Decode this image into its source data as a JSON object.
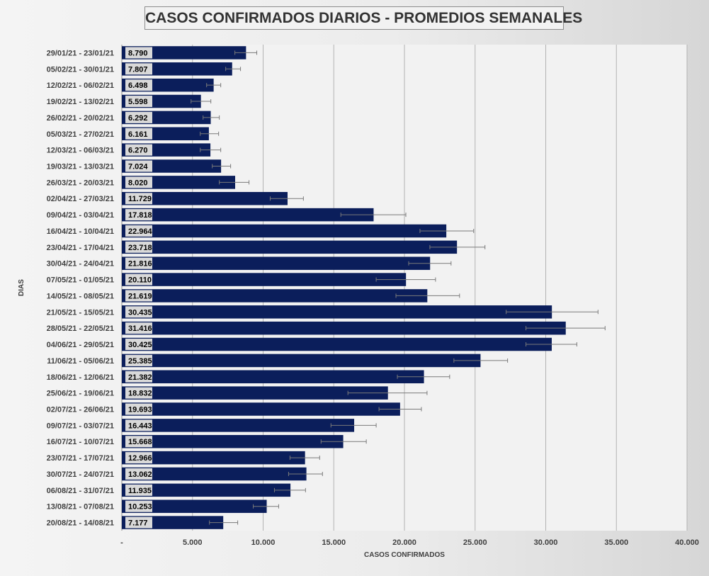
{
  "chart_data": {
    "type": "bar",
    "orientation": "horizontal",
    "title": "CASOS CONFIRMADOS DIARIOS - PROMEDIOS SEMANALES",
    "xlabel": "CASOS CONFIRMADOS",
    "ylabel": "DIAS",
    "xlim": [
      0,
      40000
    ],
    "xticks": [
      {
        "value": 0,
        "label": "-"
      },
      {
        "value": 5000,
        "label": "5.000"
      },
      {
        "value": 10000,
        "label": "10.000"
      },
      {
        "value": 15000,
        "label": "15.000"
      },
      {
        "value": 20000,
        "label": "20.000"
      },
      {
        "value": 25000,
        "label": "25.000"
      },
      {
        "value": 30000,
        "label": "30.000"
      },
      {
        "value": 35000,
        "label": "35.000"
      },
      {
        "value": 40000,
        "label": "40.000"
      }
    ],
    "grid": "vertical",
    "bar_color": "#0b1e5b",
    "categories": [
      "29/01/21 - 23/01/21",
      "05/02/21 - 30/01/21",
      "12/02/21 - 06/02/21",
      "19/02/21 - 13/02/21",
      "26/02/21 - 20/02/21",
      "05/03/21 - 27/02/21",
      "12/03/21 - 06/03/21",
      "19/03/21 - 13/03/21",
      "26/03/21 - 20/03/21",
      "02/04/21 - 27/03/21",
      "09/04/21 - 03/04/21",
      "16/04/21 - 10/04/21",
      "23/04/21 - 17/04/21",
      "30/04/21 - 24/04/21",
      "07/05/21 - 01/05/21",
      "14/05/21 - 08/05/21",
      "21/05/21 - 15/05/21",
      "28/05/21 - 22/05/21",
      "04/06/21 - 29/05/21",
      "11/06/21 - 05/06/21",
      "18/06/21 - 12/06/21",
      "25/06/21 - 19/06/21",
      "02/07/21 - 26/06/21",
      "09/07/21 - 03/07/21",
      "16/07/21 - 10/07/21",
      "23/07/21 - 17/07/21",
      "30/07/21 - 24/07/21",
      "06/08/21 - 31/07/21",
      "13/08/21 - 07/08/21",
      "20/08/21 - 14/08/21"
    ],
    "values": [
      8790,
      7807,
      6498,
      5598,
      6292,
      6161,
      6270,
      7024,
      8020,
      11729,
      17818,
      22964,
      23718,
      21816,
      20110,
      21619,
      30435,
      31416,
      30425,
      25385,
      21382,
      18832,
      19693,
      16443,
      15668,
      12966,
      13062,
      11935,
      10253,
      7177
    ],
    "value_labels": [
      "8.790",
      "7.807",
      "6.498",
      "5.598",
      "6.292",
      "6.161",
      "6.270",
      "7.024",
      "8.020",
      "11.729",
      "17.818",
      "22.964",
      "23.718",
      "21.816",
      "20.110",
      "21.619",
      "30.435",
      "31.416",
      "30.425",
      "25.385",
      "21.382",
      "18.832",
      "19.693",
      "16.443",
      "15.668",
      "12.966",
      "13.062",
      "11.935",
      "10.253",
      "7.177"
    ],
    "error_low": [
      8000,
      7350,
      6000,
      4900,
      5750,
      5550,
      5550,
      6400,
      6900,
      10500,
      15500,
      21100,
      21800,
      20300,
      18000,
      19400,
      27200,
      28600,
      28600,
      23500,
      19500,
      16000,
      18200,
      14800,
      14100,
      11900,
      11800,
      10800,
      9300,
      6200
    ],
    "error_high": [
      9550,
      8400,
      7000,
      6300,
      6900,
      6850,
      7000,
      7700,
      9000,
      12850,
      20100,
      24900,
      25700,
      23300,
      22200,
      23900,
      33700,
      34200,
      32200,
      27300,
      23200,
      21600,
      21200,
      18000,
      17300,
      14000,
      14200,
      13000,
      11100,
      8200
    ]
  }
}
